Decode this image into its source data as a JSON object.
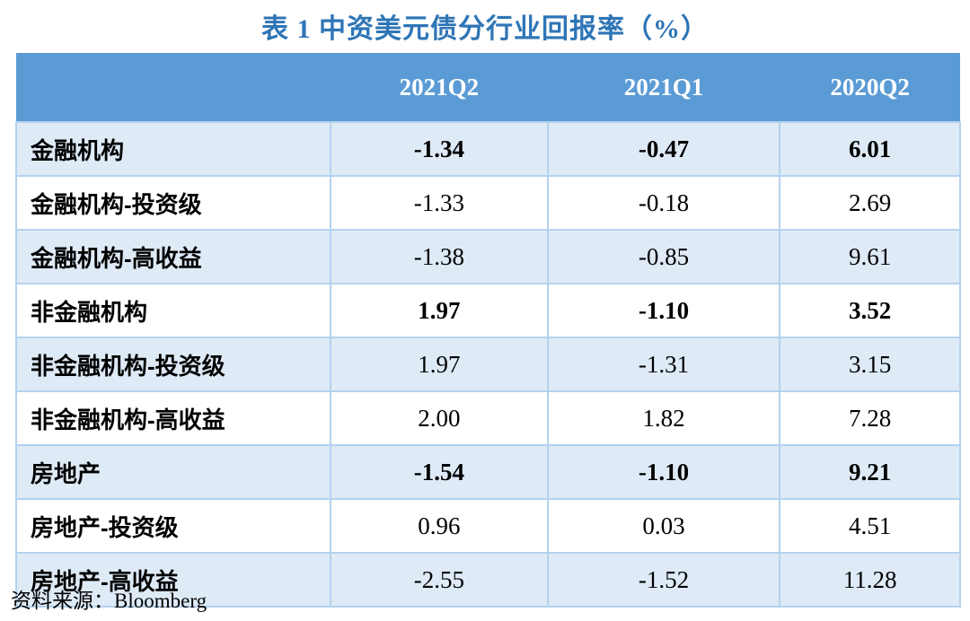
{
  "title": "表 1 中资美元债分行业回报率（%）",
  "source_note": "资料来源：Bloomberg",
  "colors": {
    "title_text": "#2E75B6",
    "header_bg": "#5B9BD5",
    "header_text": "#FFFFFF",
    "row_alt_bg": "#DEEAF6",
    "row_bg": "#FFFFFF",
    "cell_border": "#B4D2EE",
    "body_text": "#000000"
  },
  "table": {
    "columns": [
      "",
      "2021Q2",
      "2021Q1",
      "2020Q2"
    ],
    "rows": [
      {
        "label": "金融机构",
        "values": [
          "-1.34",
          "-0.47",
          "6.01"
        ],
        "emphasis": true
      },
      {
        "label": "金融机构-投资级",
        "values": [
          "-1.33",
          "-0.18",
          "2.69"
        ],
        "emphasis": false
      },
      {
        "label": "金融机构-高收益",
        "values": [
          "-1.38",
          "-0.85",
          "9.61"
        ],
        "emphasis": false
      },
      {
        "label": "非金融机构",
        "values": [
          "1.97",
          "-1.10",
          "3.52"
        ],
        "emphasis": true
      },
      {
        "label": "非金融机构-投资级",
        "values": [
          "1.97",
          "-1.31",
          "3.15"
        ],
        "emphasis": false
      },
      {
        "label": "非金融机构-高收益",
        "values": [
          "2.00",
          "1.82",
          "7.28"
        ],
        "emphasis": false
      },
      {
        "label": "房地产",
        "values": [
          "-1.54",
          "-1.10",
          "9.21"
        ],
        "emphasis": true
      },
      {
        "label": "房地产-投资级",
        "values": [
          "0.96",
          "0.03",
          "4.51"
        ],
        "emphasis": false
      },
      {
        "label": "房地产-高收益",
        "values": [
          "-2.55",
          "-1.52",
          "11.28"
        ],
        "emphasis": false
      }
    ]
  },
  "chart_data": {
    "type": "table",
    "title": "表 1 中资美元债分行业回报率（%）",
    "source": "Bloomberg",
    "categories": [
      "金融机构",
      "金融机构-投资级",
      "金融机构-高收益",
      "非金融机构",
      "非金融机构-投资级",
      "非金融机构-高收益",
      "房地产",
      "房地产-投资级",
      "房地产-高收益"
    ],
    "series": [
      {
        "name": "2021Q2",
        "values": [
          -1.34,
          -1.33,
          -1.38,
          1.97,
          1.97,
          2.0,
          -1.54,
          0.96,
          -2.55
        ]
      },
      {
        "name": "2021Q1",
        "values": [
          -0.47,
          -0.18,
          -0.85,
          -1.1,
          -1.31,
          1.82,
          -1.1,
          0.03,
          -1.52
        ]
      },
      {
        "name": "2020Q2",
        "values": [
          6.01,
          2.69,
          9.61,
          3.52,
          3.15,
          7.28,
          9.21,
          4.51,
          11.28
        ]
      }
    ]
  }
}
